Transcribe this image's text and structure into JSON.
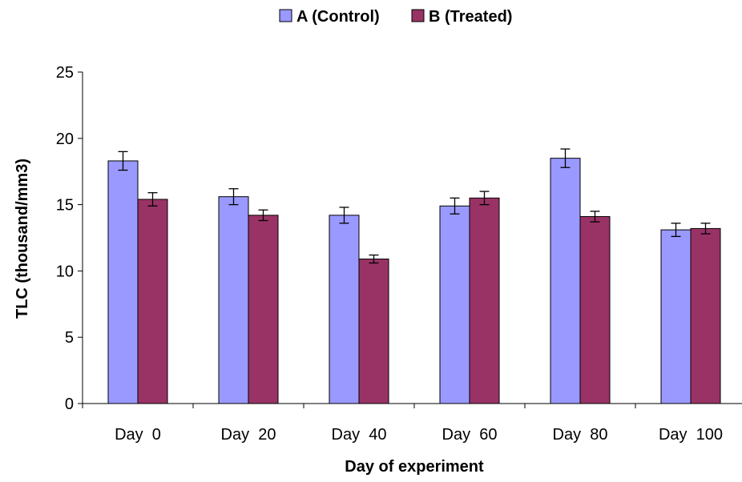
{
  "chart_data": {
    "type": "bar",
    "title": "",
    "xlabel": "Day of experiment",
    "ylabel": "TLC  (thousand/mm3)",
    "ylim": [
      0,
      25
    ],
    "yticks": [
      0,
      5,
      10,
      15,
      20,
      25
    ],
    "categories": [
      "Day  0",
      "Day  20",
      "Day  40",
      "Day  60",
      "Day  80",
      "Day  100"
    ],
    "series": [
      {
        "name": "A (Control)",
        "color": "#9999ff",
        "values": [
          18.3,
          15.6,
          14.2,
          14.9,
          18.5,
          13.1
        ],
        "errors": [
          0.7,
          0.6,
          0.6,
          0.6,
          0.7,
          0.5
        ]
      },
      {
        "name": "B (Treated)",
        "color": "#993366",
        "values": [
          15.4,
          14.2,
          10.9,
          15.5,
          14.1,
          13.2
        ],
        "errors": [
          0.5,
          0.4,
          0.3,
          0.5,
          0.4,
          0.4
        ]
      }
    ],
    "grid": false,
    "legend_position": "top-center",
    "error_bars": true
  }
}
